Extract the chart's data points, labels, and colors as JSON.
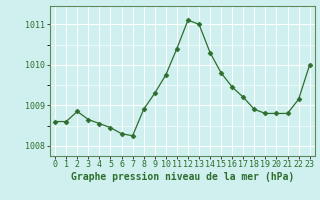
{
  "x": [
    0,
    1,
    2,
    3,
    4,
    5,
    6,
    7,
    8,
    9,
    10,
    11,
    12,
    13,
    14,
    15,
    16,
    17,
    18,
    19,
    20,
    21,
    22,
    23
  ],
  "y": [
    1008.6,
    1008.6,
    1008.85,
    1008.65,
    1008.55,
    1008.45,
    1008.3,
    1008.25,
    1008.9,
    1009.3,
    1009.75,
    1010.4,
    1011.1,
    1011.0,
    1010.3,
    1009.8,
    1009.45,
    1009.2,
    1008.9,
    1008.8,
    1008.8,
    1008.8,
    1009.15,
    1010.0
  ],
  "line_color": "#2d6e2d",
  "marker": "D",
  "marker_size": 2.5,
  "background_color": "#d0f0f0",
  "grid_color": "#b8e0e0",
  "title": "Graphe pression niveau de la mer (hPa)",
  "xlabel": "Graphe pression niveau de la mer (hPa)",
  "ylim": [
    1007.75,
    1011.45
  ],
  "xlim": [
    -0.5,
    23.5
  ],
  "yticks": [
    1008,
    1009,
    1010,
    1011
  ],
  "xtick_labels": [
    "0",
    "1",
    "2",
    "3",
    "4",
    "5",
    "6",
    "7",
    "8",
    "9",
    "10",
    "11",
    "12",
    "13",
    "14",
    "15",
    "16",
    "17",
    "18",
    "19",
    "20",
    "21",
    "22",
    "23"
  ],
  "tick_color": "#2d6e2d",
  "label_fontsize": 7,
  "tick_fontsize": 6,
  "spine_color": "#5a8a5a"
}
